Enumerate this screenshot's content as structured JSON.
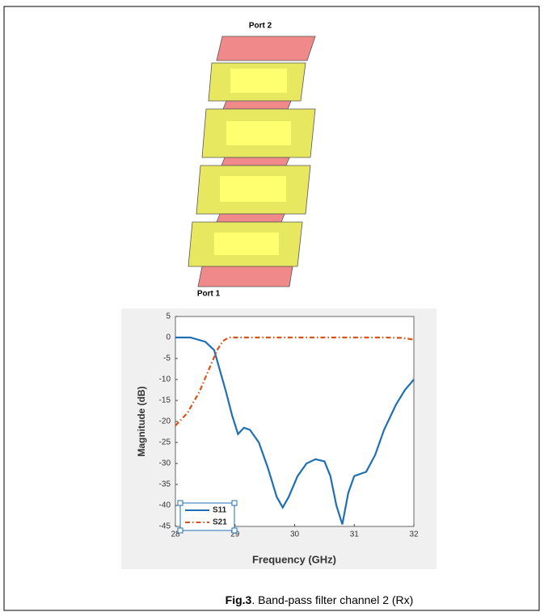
{
  "figure": {
    "labels": [
      "Port 2",
      "Port 1"
    ],
    "caption": {
      "label": "Fig.3",
      "text": ". Band-pass filter channel 2 (Rx)"
    }
  },
  "chart_data": {
    "type": "line",
    "xlabel": "Frequency (GHz)",
    "ylabel": "Magnitude (dB)",
    "xlim": [
      28,
      32
    ],
    "xticks": [
      28,
      29,
      30,
      31,
      32
    ],
    "ylim": [
      -45,
      5
    ],
    "yticks": [
      -45,
      -40,
      -35,
      -30,
      -25,
      -20,
      -15,
      -10,
      -5,
      0,
      5
    ],
    "grid": false,
    "legend": "lower left",
    "series": [
      {
        "name": "S11",
        "color": "#1f6fb5",
        "dash": "solid",
        "x": [
          28,
          28.25,
          28.5,
          28.65,
          28.75,
          28.85,
          28.95,
          29.05,
          29.15,
          29.25,
          29.4,
          29.55,
          29.7,
          29.8,
          29.9,
          30.05,
          30.2,
          30.35,
          30.5,
          30.6,
          30.7,
          30.8,
          30.9,
          31.0,
          31.1,
          31.2,
          31.35,
          31.5,
          31.7,
          31.85,
          32
        ],
        "values": [
          0,
          0,
          -1,
          -3,
          -8,
          -13,
          -18.5,
          -23,
          -21.5,
          -22,
          -25,
          -31,
          -38,
          -40.5,
          -38,
          -33,
          -30,
          -29,
          -29.5,
          -33,
          -40,
          -44.5,
          -37,
          -33,
          -32.5,
          -32,
          -28,
          -22,
          -16,
          -12.5,
          -10
        ]
      },
      {
        "name": "S21",
        "color": "#d95319",
        "dash": "dashdot",
        "x": [
          28,
          28.2,
          28.4,
          28.55,
          28.7,
          28.8,
          28.9,
          29.5,
          30,
          31,
          31.5,
          31.8,
          32
        ],
        "values": [
          -21,
          -18,
          -13,
          -8,
          -3,
          -0.8,
          0,
          0,
          0,
          0,
          0,
          -0.1,
          -0.5
        ]
      }
    ]
  }
}
